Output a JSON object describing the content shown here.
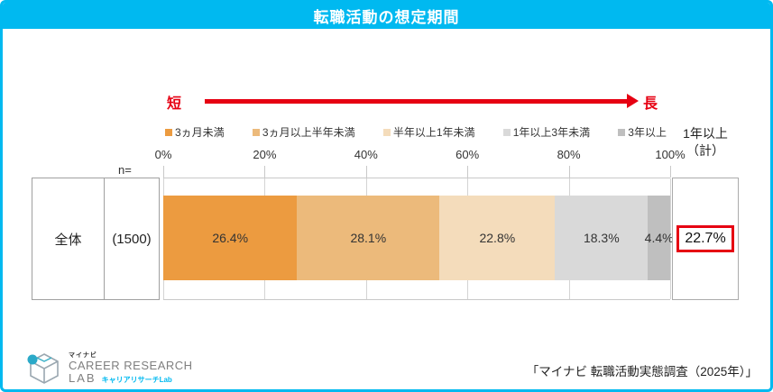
{
  "title": "転職活動の想定期間",
  "colors": {
    "accent_cyan": "#00B9F0",
    "accent_red": "#E60012",
    "grid_gray": "#D4D4D4"
  },
  "arrow": {
    "short_label": "短",
    "long_label": "長"
  },
  "axis": {
    "n_label": "n="
  },
  "total_column": {
    "header_line1": "1年以上",
    "header_line2": "（計）",
    "value": "22.7%"
  },
  "footer": {
    "logo": {
      "brand_small": "マイナビ",
      "brand_line1": "CAREER RESEARCH",
      "brand_line2": "LAB",
      "brand_sub": "キャリアリサーチLab"
    },
    "source": "「マイナビ 転職活動実態調査（2025年）」"
  },
  "chart_data": {
    "type": "bar",
    "orientation": "horizontal_stacked",
    "title": "転職活動の想定期間",
    "categories": [
      "全体"
    ],
    "n_values": [
      "(1500)"
    ],
    "series": [
      {
        "name": "3ヵ月未満",
        "color": "#EC9B40",
        "values": [
          26.4
        ]
      },
      {
        "name": "3ヵ月以上半年未満",
        "color": "#ECBA7B",
        "values": [
          28.1
        ]
      },
      {
        "name": "半年以上1年未満",
        "color": "#F4DCBB",
        "values": [
          22.8
        ]
      },
      {
        "name": "1年以上3年未満",
        "color": "#D9D9D9",
        "values": [
          18.3
        ]
      },
      {
        "name": "3年以上",
        "color": "#BFBFBF",
        "values": [
          4.4
        ]
      }
    ],
    "x_ticks": [
      "0%",
      "20%",
      "40%",
      "60%",
      "80%",
      "100%"
    ],
    "xlim": [
      0,
      100
    ],
    "grid": true,
    "legend_position": "top",
    "annotations": [
      {
        "label": "1年以上（計）",
        "value": 22.7,
        "highlight": "red_box"
      }
    ]
  }
}
